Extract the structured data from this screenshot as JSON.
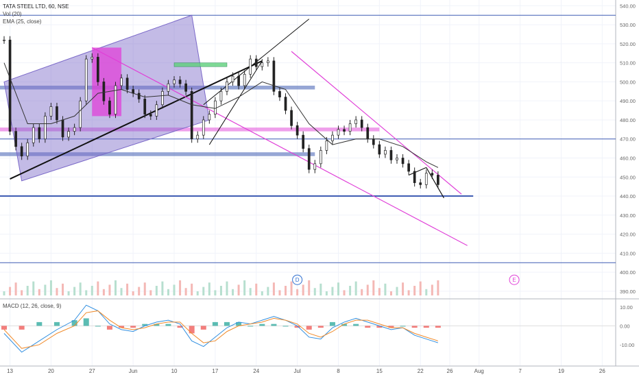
{
  "header": {
    "symbol_line": "TATA STEEL LTD, 60, NSE",
    "vol_label": "Vol (20)",
    "ema_label": "EMA (25, close)",
    "macd_label": "MACD (12, 26, close, 9)"
  },
  "colors": {
    "up": "#2a2a2a",
    "channel_fill": "#7a68c8",
    "magenta": "#e040d8",
    "blue_line": "#3f5cb3",
    "green_box": "#5ed07a",
    "macd_line": "#2f8ee0",
    "signal_line": "#f08a2a",
    "hist_up": "#26a69a",
    "hist_down": "#ef5350"
  },
  "chart_data": {
    "type": "line",
    "title": "TATA STEEL LTD, 60, NSE",
    "price_axis": {
      "ylim": [
        386,
        543
      ],
      "ticks": [
        "540.00",
        "530.00",
        "520.00",
        "510.00",
        "500.00",
        "490.00",
        "480.00",
        "470.00",
        "460.00",
        "450.00",
        "440.00",
        "430.00",
        "420.00",
        "410.00",
        "400.00",
        "390.00"
      ],
      "tick_values": [
        540,
        530,
        520,
        510,
        500,
        490,
        480,
        470,
        460,
        450,
        440,
        430,
        420,
        410,
        400,
        390
      ]
    },
    "macd_axis": {
      "ylim": [
        -17,
        14
      ],
      "ticks": [
        "10.00",
        "0.00",
        "-10.00"
      ],
      "tick_values": [
        10,
        0,
        -10
      ]
    },
    "x_axis": {
      "ticks": [
        "13",
        "20",
        "27",
        "Jun",
        "10",
        "17",
        "24",
        "Jul",
        "8",
        "15",
        "22",
        "26",
        "Aug",
        "7",
        "19",
        "26"
      ],
      "tick_index": [
        1,
        8,
        15,
        22,
        29,
        36,
        43,
        50,
        57,
        64,
        71,
        76,
        81,
        88,
        95,
        102
      ],
      "xlim": [
        0,
        105
      ]
    },
    "price_series": {
      "name": "TATA STEEL LTD",
      "x": [
        0,
        1,
        2,
        3,
        4,
        5,
        6,
        7,
        8,
        9,
        10,
        11,
        12,
        13,
        14,
        15,
        16,
        17,
        18,
        19,
        20,
        21,
        22,
        23,
        24,
        25,
        26,
        27,
        28,
        29,
        30,
        31,
        32,
        33,
        34,
        35,
        36,
        37,
        38,
        39,
        40,
        41,
        42,
        43,
        44,
        45,
        46,
        47,
        48,
        49,
        50,
        51,
        52,
        53,
        54,
        55,
        56,
        57,
        58,
        59,
        60,
        61,
        62,
        63,
        64,
        65,
        66,
        67,
        68,
        69,
        70,
        71,
        72,
        73,
        74
      ],
      "close": [
        522,
        474,
        466,
        461,
        468,
        476,
        470,
        482,
        487,
        480,
        471,
        474,
        476,
        490,
        512,
        513,
        500,
        490,
        483,
        498,
        502,
        496,
        494,
        491,
        483,
        482,
        488,
        495,
        499,
        501,
        499,
        495,
        470,
        472,
        480,
        483,
        490,
        495,
        500,
        503,
        498,
        504,
        512,
        508,
        510,
        511,
        495,
        492,
        485,
        477,
        472,
        465,
        454,
        457,
        464,
        469,
        472,
        475,
        474,
        478,
        480,
        476,
        470,
        467,
        462,
        464,
        459,
        460,
        457,
        453,
        447,
        446,
        452,
        451,
        446
      ]
    },
    "ema_series": {
      "name": "EMA (25, close)",
      "x": [
        0,
        4,
        8,
        12,
        16,
        20,
        24,
        28,
        32,
        36,
        40,
        44,
        48,
        52,
        56,
        60,
        64,
        68,
        72,
        74
      ],
      "y": [
        510,
        478,
        478,
        482,
        494,
        496,
        492,
        493,
        488,
        486,
        492,
        500,
        496,
        478,
        467,
        470,
        470,
        466,
        458,
        455
      ]
    },
    "reference_lines": {
      "blue_levels": [
        535,
        470,
        440,
        405
      ],
      "blue_bands": [
        [
          496,
          498
        ],
        [
          461,
          463
        ]
      ],
      "magenta_band": [
        474,
        476
      ]
    },
    "macd_series": {
      "name": "MACD (12, 26, close, 9)",
      "x": [
        0,
        3,
        6,
        9,
        12,
        14,
        16,
        18,
        20,
        22,
        24,
        26,
        28,
        30,
        32,
        34,
        36,
        38,
        40,
        42,
        44,
        46,
        48,
        50,
        52,
        54,
        56,
        58,
        60,
        62,
        64,
        66,
        68,
        70,
        72,
        74
      ],
      "macd": [
        -4,
        -14,
        -8,
        -2,
        3,
        11,
        8,
        1,
        -2,
        -3,
        0,
        2,
        3,
        1,
        -8,
        -11,
        -6,
        -1,
        2,
        1,
        3,
        5,
        3,
        0,
        -6,
        -7,
        -1,
        2,
        4,
        2,
        0,
        -2,
        -1,
        -5,
        -7,
        -9
      ],
      "signal": [
        -2,
        -12,
        -10,
        -4,
        0,
        7,
        8,
        3,
        -1,
        -2,
        -1,
        1,
        2,
        2,
        -4,
        -9,
        -8,
        -3,
        0,
        1,
        2,
        4,
        3,
        1,
        -4,
        -6,
        -3,
        1,
        3,
        3,
        1,
        -1,
        -1,
        -4,
        -6,
        -8
      ]
    },
    "annotations": [
      "D",
      "E"
    ],
    "grid": true,
    "legend": "top-left"
  }
}
